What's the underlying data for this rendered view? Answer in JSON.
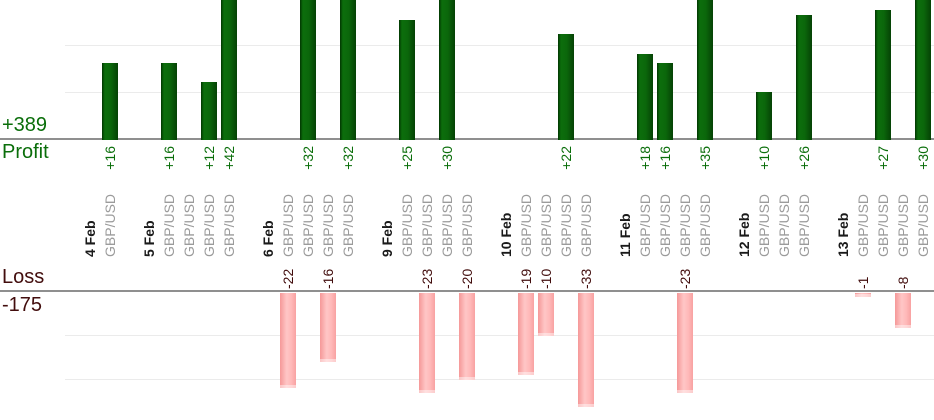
{
  "chart_data": {
    "type": "bar",
    "title": "",
    "description": "Per-trade profit (green bars, upward) and loss (pink bars, downward) grouped by trading day; break-even trades (value 0) show no bar",
    "legend": "none",
    "grid": true,
    "profit_axis": {
      "total_label": "+389",
      "name_label": "Profit",
      "gridline_interval": 10,
      "direction": "up"
    },
    "loss_axis": {
      "name_label": "Loss",
      "total_label": "-175",
      "gridline_interval": 10,
      "direction": "down"
    },
    "colors": {
      "profit_bar": "#0b670b",
      "profit_text": "#0a6e0a",
      "loss_bar": "#ffbcbc",
      "loss_text": "#420d0d",
      "symbol_text": "#9b9b9b",
      "date_text": "#1a1a1a",
      "axis_line": "#8f8f8f",
      "gridline": "#ebebeb"
    },
    "groups": [
      {
        "date": "4 Feb",
        "trades": [
          {
            "symbol": "GBP/USD",
            "value": 16
          }
        ]
      },
      {
        "date": "5 Feb",
        "trades": [
          {
            "symbol": "GBP/USD",
            "value": 16
          },
          {
            "symbol": "GBP/USD",
            "value": 0
          },
          {
            "symbol": "GBP/USD",
            "value": 12
          },
          {
            "symbol": "GBP/USD",
            "value": 42
          }
        ]
      },
      {
        "date": "6 Feb",
        "trades": [
          {
            "symbol": "GBP/USD",
            "value": -22
          },
          {
            "symbol": "GBP/USD",
            "value": 32
          },
          {
            "symbol": "GBP/USD",
            "value": -16
          },
          {
            "symbol": "GBP/USD",
            "value": 32
          }
        ]
      },
      {
        "date": "9 Feb",
        "trades": [
          {
            "symbol": "GBP/USD",
            "value": 25
          },
          {
            "symbol": "GBP/USD",
            "value": -23
          },
          {
            "symbol": "GBP/USD",
            "value": 30
          },
          {
            "symbol": "GBP/USD",
            "value": -20
          }
        ]
      },
      {
        "date": "10 Feb",
        "trades": [
          {
            "symbol": "GBP/USD",
            "value": -19
          },
          {
            "symbol": "GBP/USD",
            "value": -10
          },
          {
            "symbol": "GBP/USD",
            "value": 22
          },
          {
            "symbol": "GBP/USD",
            "value": -33
          }
        ]
      },
      {
        "date": "11 Feb",
        "trades": [
          {
            "symbol": "GBP/USD",
            "value": 18
          },
          {
            "symbol": "GBP/USD",
            "value": 16
          },
          {
            "symbol": "GBP/USD",
            "value": -23
          },
          {
            "symbol": "GBP/USD",
            "value": 35
          }
        ]
      },
      {
        "date": "12 Feb",
        "trades": [
          {
            "symbol": "GBP/USD",
            "value": 10
          },
          {
            "symbol": "GBP/USD",
            "value": 0
          },
          {
            "symbol": "GBP/USD",
            "value": 26
          }
        ]
      },
      {
        "date": "13 Feb",
        "trades": [
          {
            "symbol": "GBP/USD",
            "value": -1
          },
          {
            "symbol": "GBP/USD",
            "value": 27
          },
          {
            "symbol": "GBP/USD",
            "value": -8
          },
          {
            "symbol": "GBP/USD",
            "value": 30
          }
        ]
      }
    ]
  }
}
